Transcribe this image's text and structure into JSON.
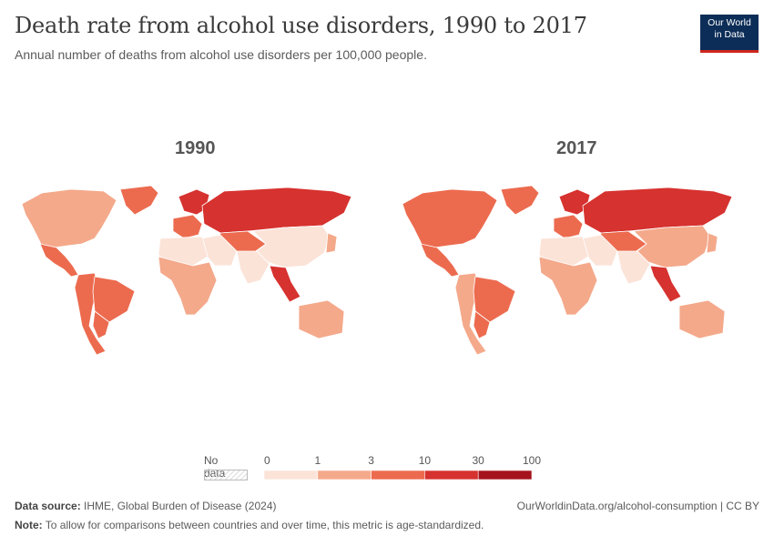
{
  "title": "Death rate from alcohol use disorders, 1990 to 2017",
  "subtitle": "Annual number of deaths from alcohol use disorders per 100,000 people.",
  "logo": {
    "line1": "Our World",
    "line2": "in Data"
  },
  "maps": [
    {
      "year": "1990"
    },
    {
      "year": "2017"
    }
  ],
  "legend": {
    "no_data_label": "No data",
    "ticks": [
      "0",
      "1",
      "3",
      "10",
      "30",
      "100"
    ],
    "colors": [
      "#fbe3d8",
      "#f4a98b",
      "#ec6b4f",
      "#d6322f",
      "#a5141d"
    ]
  },
  "chart_data": {
    "type": "choropleth-map",
    "title": "Death rate from alcohol use disorders, 1990 to 2017",
    "unit": "deaths per 100,000 people (age-standardized)",
    "bins": [
      [
        0,
        1
      ],
      [
        1,
        3
      ],
      [
        3,
        10
      ],
      [
        10,
        30
      ],
      [
        30,
        100
      ]
    ],
    "panels": [
      {
        "year": "1990",
        "regions": {
          "North America": 2,
          "Greenland": 4,
          "Central America": 6,
          "South America": 4,
          "Brazil": 6,
          "Southern Cone": 4,
          "Western Europe": 4,
          "Northern Europe": 12,
          "Eastern Europe & Russia": 15,
          "Central Asia": 8,
          "Middle East": 0.5,
          "North Africa": 0.5,
          "Sub-Saharan Africa": 2,
          "South Asia": 0.8,
          "China & Mongolia": 0.8,
          "Southeast Asia": 12,
          "Japan & Korea": 2,
          "Australia": 2
        }
      },
      {
        "year": "2017",
        "regions": {
          "North America": 4,
          "Greenland": 8,
          "Central America": 6,
          "South America": 2,
          "Brazil": 4,
          "Southern Cone": 4,
          "Western Europe": 4,
          "Northern Europe": 12,
          "Eastern Europe & Russia": 15,
          "Central Asia": 6,
          "Middle East": 0.5,
          "North Africa": 0.5,
          "Sub-Saharan Africa": 2,
          "South Asia": 0.8,
          "China & Mongolia": 1.5,
          "Southeast Asia": 12,
          "Japan & Korea": 2,
          "Australia": 2
        }
      }
    ]
  },
  "footer": {
    "source_label": "Data source:",
    "source_text": "IHME, Global Burden of Disease (2024)",
    "note_label": "Note:",
    "note_text": "To allow for comparisons between countries and over time, this metric is age-standardized.",
    "url": "OurWorldinData.org/alcohol-consumption | CC BY"
  }
}
